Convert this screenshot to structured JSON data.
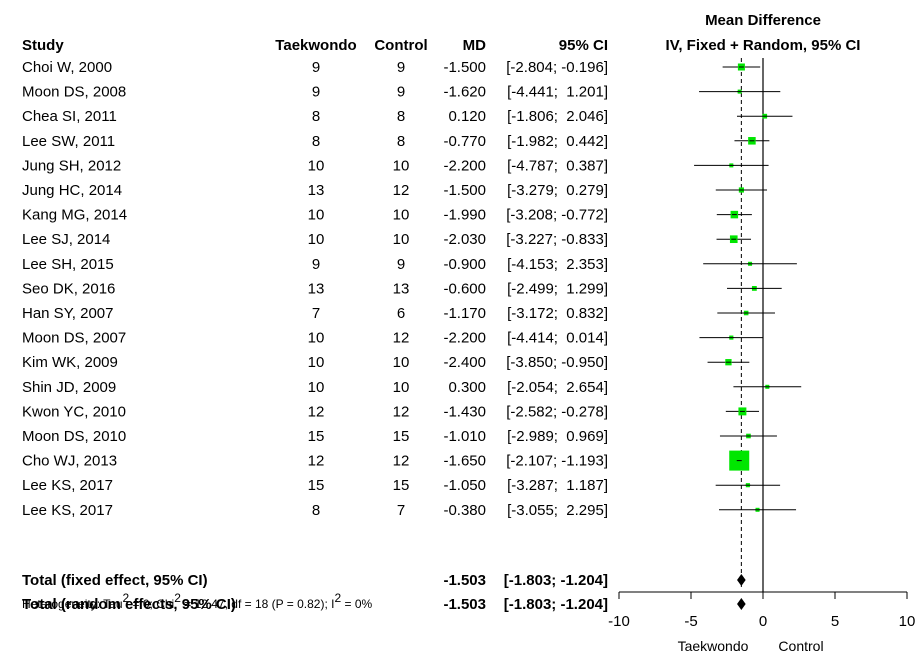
{
  "header": {
    "plot_title_line1": "Mean Difference",
    "plot_title_line2": "IV, Fixed + Random, 95% CI",
    "col_study": "Study",
    "col_treat": "Taekwondo",
    "col_control": "Control",
    "col_md": "MD",
    "col_ci": "95% CI"
  },
  "chart_data": {
    "type": "forest",
    "xlim": [
      -10,
      10
    ],
    "xticks": [
      "-10",
      "-5",
      "0",
      "5",
      "10"
    ],
    "xtick_values": [
      -10,
      -5,
      0,
      5,
      10
    ],
    "xlabel_left": "Taekwondo",
    "xlabel_right": "Control",
    "reference_line": 0,
    "pooled_line": -1.503,
    "studies": [
      {
        "study": "Choi W, 2000",
        "treat": "9",
        "control": "9",
        "md": -1.5,
        "lo": -2.804,
        "hi": -0.196,
        "md_text": "-1.500",
        "ci_text": "[-2.804; -0.196]"
      },
      {
        "study": "Moon DS, 2008",
        "treat": "9",
        "control": "9",
        "md": -1.62,
        "lo": -4.441,
        "hi": 1.201,
        "md_text": "-1.620",
        "ci_text": "[-4.441;  1.201]"
      },
      {
        "study": "Chea SI, 2011",
        "treat": "8",
        "control": "8",
        "md": 0.12,
        "lo": -1.806,
        "hi": 2.046,
        "md_text": "0.120",
        "ci_text": "[-1.806;  2.046]"
      },
      {
        "study": "Lee SW, 2011",
        "treat": "8",
        "control": "8",
        "md": -0.77,
        "lo": -1.982,
        "hi": 0.442,
        "md_text": "-0.770",
        "ci_text": "[-1.982;  0.442]"
      },
      {
        "study": "Jung SH, 2012",
        "treat": "10",
        "control": "10",
        "md": -2.2,
        "lo": -4.787,
        "hi": 0.387,
        "md_text": "-2.200",
        "ci_text": "[-4.787;  0.387]"
      },
      {
        "study": "Jung HC, 2014",
        "treat": "13",
        "control": "12",
        "md": -1.5,
        "lo": -3.279,
        "hi": 0.279,
        "md_text": "-1.500",
        "ci_text": "[-3.279;  0.279]"
      },
      {
        "study": "Kang MG, 2014",
        "treat": "10",
        "control": "10",
        "md": -1.99,
        "lo": -3.208,
        "hi": -0.772,
        "md_text": "-1.990",
        "ci_text": "[-3.208; -0.772]"
      },
      {
        "study": "Lee SJ, 2014",
        "treat": "10",
        "control": "10",
        "md": -2.03,
        "lo": -3.227,
        "hi": -0.833,
        "md_text": "-2.030",
        "ci_text": "[-3.227; -0.833]"
      },
      {
        "study": "Lee SH, 2015",
        "treat": "9",
        "control": "9",
        "md": -0.9,
        "lo": -4.153,
        "hi": 2.353,
        "md_text": "-0.900",
        "ci_text": "[-4.153;  2.353]"
      },
      {
        "study": "Seo DK, 2016",
        "treat": "13",
        "control": "13",
        "md": -0.6,
        "lo": -2.499,
        "hi": 1.299,
        "md_text": "-0.600",
        "ci_text": "[-2.499;  1.299]"
      },
      {
        "study": "Han SY, 2007",
        "treat": "7",
        "control": "6",
        "md": -1.17,
        "lo": -3.172,
        "hi": 0.832,
        "md_text": "-1.170",
        "ci_text": "[-3.172;  0.832]"
      },
      {
        "study": "Moon DS, 2007",
        "treat": "10",
        "control": "12",
        "md": -2.2,
        "lo": -4.414,
        "hi": 0.014,
        "md_text": "-2.200",
        "ci_text": "[-4.414;  0.014]"
      },
      {
        "study": "Kim WK, 2009",
        "treat": "10",
        "control": "10",
        "md": -2.4,
        "lo": -3.85,
        "hi": -0.95,
        "md_text": "-2.400",
        "ci_text": "[-3.850; -0.950]"
      },
      {
        "study": "Shin JD, 2009",
        "treat": "10",
        "control": "10",
        "md": 0.3,
        "lo": -2.054,
        "hi": 2.654,
        "md_text": "0.300",
        "ci_text": "[-2.054;  2.654]"
      },
      {
        "study": "Kwon YC, 2010",
        "treat": "12",
        "control": "12",
        "md": -1.43,
        "lo": -2.582,
        "hi": -0.278,
        "md_text": "-1.430",
        "ci_text": "[-2.582; -0.278]"
      },
      {
        "study": "Moon DS, 2010",
        "treat": "15",
        "control": "15",
        "md": -1.01,
        "lo": -2.989,
        "hi": 0.969,
        "md_text": "-1.010",
        "ci_text": "[-2.989;  0.969]"
      },
      {
        "study": "Cho WJ, 2013",
        "treat": "12",
        "control": "12",
        "md": -1.65,
        "lo": -2.107,
        "hi": -1.193,
        "md_text": "-1.650",
        "ci_text": "[-2.107; -1.193]"
      },
      {
        "study": "Lee KS, 2017",
        "treat": "15",
        "control": "15",
        "md": -1.05,
        "lo": -3.287,
        "hi": 1.187,
        "md_text": "-1.050",
        "ci_text": "[-3.287;  1.187]"
      },
      {
        "study": "Lee KS, 2017",
        "treat": "8",
        "control": "7",
        "md": -0.38,
        "lo": -3.055,
        "hi": 2.295,
        "md_text": "-0.380",
        "ci_text": "[-3.055;  2.295]"
      }
    ],
    "totals": [
      {
        "label": "Total (fixed effect, 95% CI)",
        "md": -1.503,
        "lo": -1.803,
        "hi": -1.204,
        "md_text": "-1.503",
        "ci_text": "[-1.803; -1.204]"
      },
      {
        "label": "Total (random effects, 95% CI)",
        "md": -1.503,
        "lo": -1.803,
        "hi": -1.204,
        "md_text": "-1.503",
        "ci_text": "[-1.803; -1.204]"
      }
    ],
    "heterogeneity": {
      "prefix": "Heterogeneity: Tau",
      "tau_exp": "2",
      "chi_part": " = 0; Chi",
      "chi_exp": "2",
      "mid_part": " = 12.47, df = 18 (P = 0.82); I",
      "i_exp": "2",
      "suffix": " = 0%"
    },
    "colors": {
      "box": "#00e600",
      "line": "#000000",
      "diamond": "#000000"
    }
  }
}
